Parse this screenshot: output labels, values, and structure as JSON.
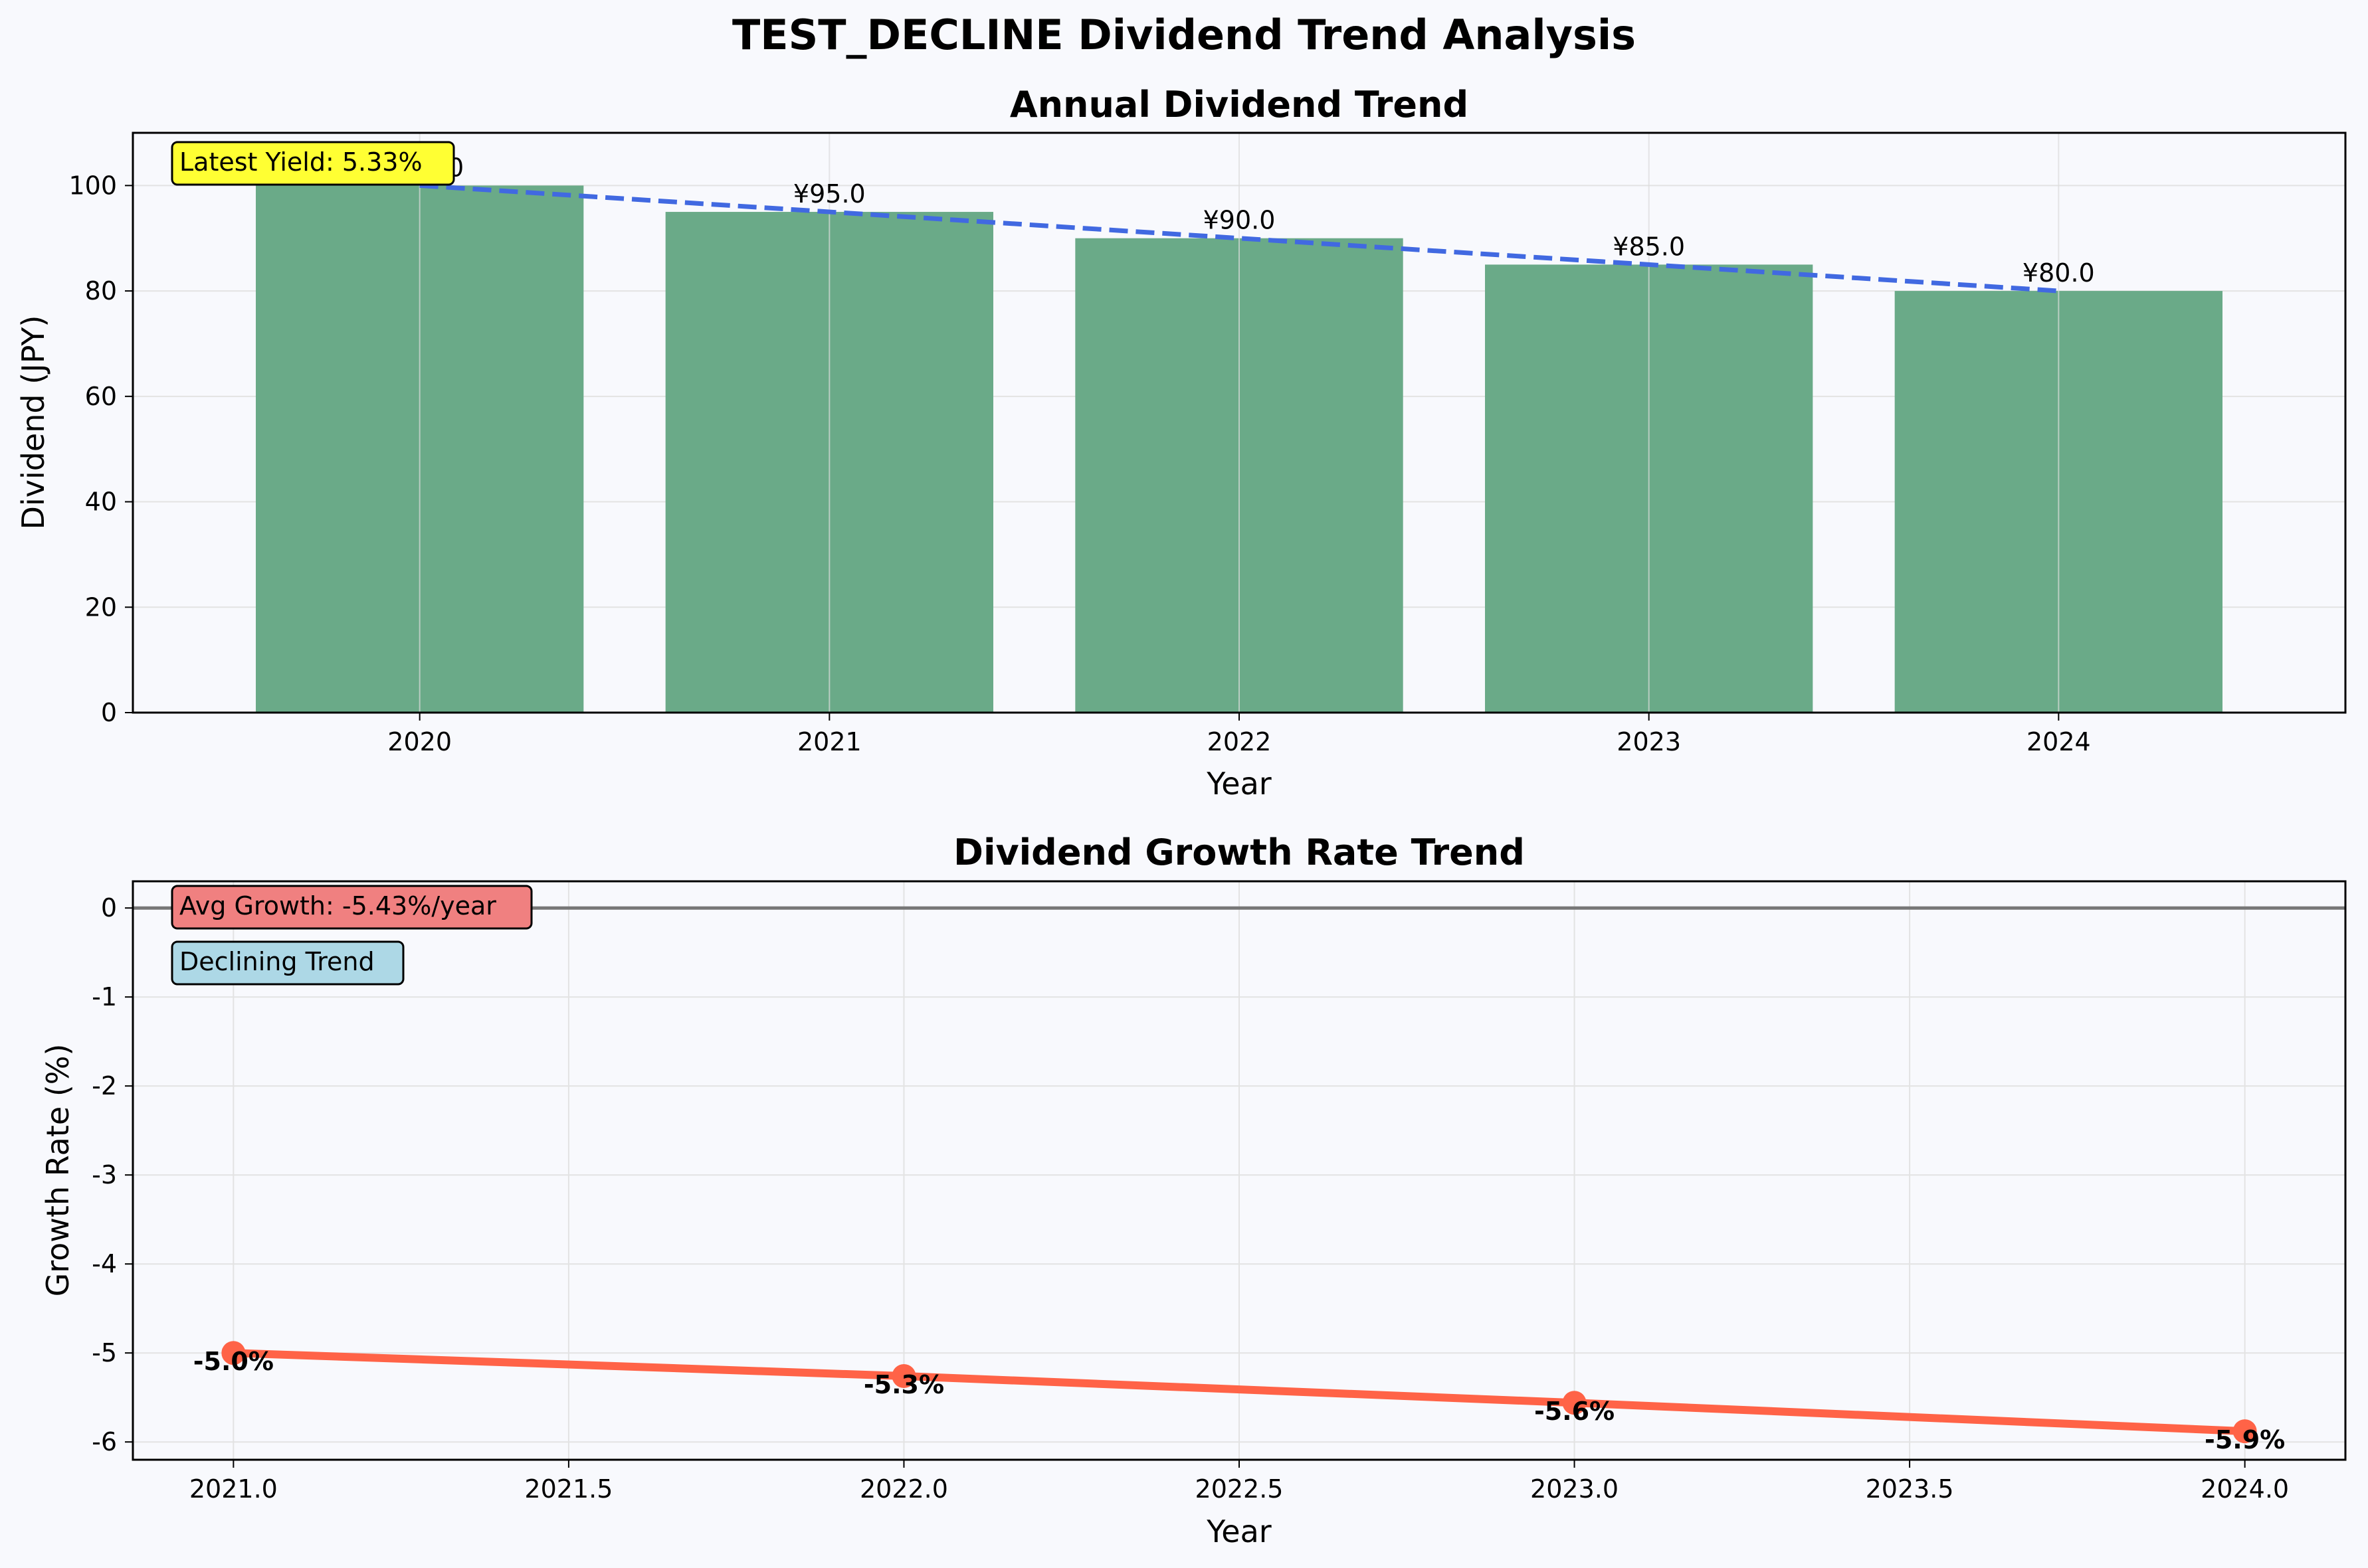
{
  "figure": {
    "suptitle": "TEST_DECLINE Dividend Trend Analysis",
    "background": "#f8f9fd"
  },
  "chart_data": [
    {
      "type": "bar",
      "title": "Annual Dividend Trend",
      "xlabel": "Year",
      "ylabel": "Dividend (JPY)",
      "categories": [
        "2020",
        "2021",
        "2022",
        "2023",
        "2024"
      ],
      "values": [
        100.0,
        95.0,
        90.0,
        85.0,
        80.0
      ],
      "bar_labels": [
        "¥100.0",
        "¥95.0",
        "¥90.0",
        "¥85.0",
        "¥80.0"
      ],
      "ylim": [
        0,
        110
      ],
      "yticks": [
        0,
        20,
        40,
        60,
        80,
        100
      ],
      "trend_line": {
        "style": "dashed",
        "color": "#4169e1",
        "start": 100.0,
        "end": 80.0
      },
      "annotation": {
        "text": "Latest Yield: 5.33%",
        "box_color": "#ffff33",
        "placement": "top-left"
      },
      "bar_color": "#6aaa88",
      "grid": true
    },
    {
      "type": "line",
      "title": "Dividend Growth Rate Trend",
      "xlabel": "Year",
      "ylabel": "Growth Rate (%)",
      "x": [
        2021.0,
        2022.0,
        2023.0,
        2024.0
      ],
      "y": [
        -5.0,
        -5.26,
        -5.56,
        -5.88
      ],
      "point_labels": [
        "-5.0%",
        "-5.3%",
        "-5.6%",
        "-5.9%"
      ],
      "xlim": [
        2020.85,
        2024.15
      ],
      "xticks": [
        "2021.0",
        "2021.5",
        "2022.0",
        "2022.5",
        "2023.0",
        "2023.5",
        "2024.0"
      ],
      "ylim": [
        -6.2,
        0.3
      ],
      "yticks": [
        "0",
        "-1",
        "-2",
        "-3",
        "-4",
        "-5",
        "-6"
      ],
      "zero_line": true,
      "line_color": "#ff6347",
      "annotations": [
        {
          "text": "Avg Growth: -5.43%/year",
          "box_color": "#f08080",
          "placement": "top-left"
        },
        {
          "text": "Declining Trend",
          "box_color": "#add8e6",
          "placement": "top-left"
        }
      ],
      "grid": true
    }
  ]
}
